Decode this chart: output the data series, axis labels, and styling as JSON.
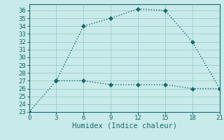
{
  "line1_x": [
    0,
    3,
    6,
    9,
    12,
    15,
    18,
    21
  ],
  "line1_y": [
    23,
    27,
    34,
    35,
    36.2,
    36,
    32,
    26
  ],
  "line2_x": [
    3,
    6,
    9,
    12,
    15,
    18,
    21
  ],
  "line2_y": [
    27,
    27,
    26.5,
    26.5,
    26.5,
    26,
    26
  ],
  "line_color": "#1a6b6b",
  "bg_color": "#c8eaea",
  "grid_color": "#a0cccc",
  "xlabel": "Humidex (Indice chaleur)",
  "xlim": [
    0,
    21
  ],
  "ylim": [
    23,
    36.5
  ],
  "xticks": [
    0,
    3,
    6,
    9,
    12,
    15,
    18,
    21
  ],
  "yticks": [
    23,
    24,
    25,
    26,
    27,
    28,
    29,
    30,
    31,
    32,
    33,
    34,
    35,
    36
  ],
  "markersize": 3,
  "linewidth": 1.0,
  "xlabel_fontsize": 7.5,
  "tick_fontsize": 6.5
}
